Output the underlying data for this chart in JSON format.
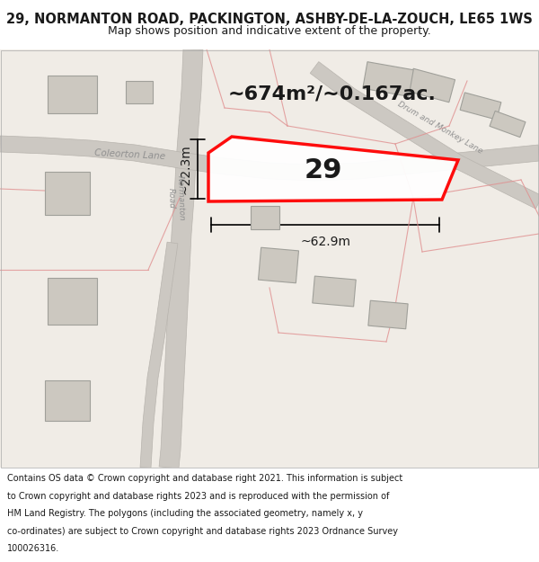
{
  "title_line1": "29, NORMANTON ROAD, PACKINGTON, ASHBY-DE-LA-ZOUCH, LE65 1WS",
  "title_line2": "Map shows position and indicative extent of the property.",
  "area_text": "~674m²/~0.167ac.",
  "number_label": "29",
  "width_label": "~62.9m",
  "height_label": "~22.3m",
  "footer_lines": [
    "Contains OS data © Crown copyright and database right 2021. This information is subject",
    "to Crown copyright and database rights 2023 and is reproduced with the permission of",
    "HM Land Registry. The polygons (including the associated geometry, namely x, y",
    "co-ordinates) are subject to Crown copyright and database rights 2023 Ordnance Survey",
    "100026316."
  ],
  "background_color": "#f0ece6",
  "road_color": "#ccc8c2",
  "road_edge_color": "#b8b4ae",
  "building_fill": "#ccc8c0",
  "building_edge": "#a0a09a",
  "plot_border_color": "#ff0000",
  "plot_fill": "#ffffff",
  "pink_line_color": "#e09090",
  "title_bg": "#ffffff",
  "footer_bg": "#ffffff",
  "road_label_color": "#909090",
  "text_color": "#1a1a1a"
}
